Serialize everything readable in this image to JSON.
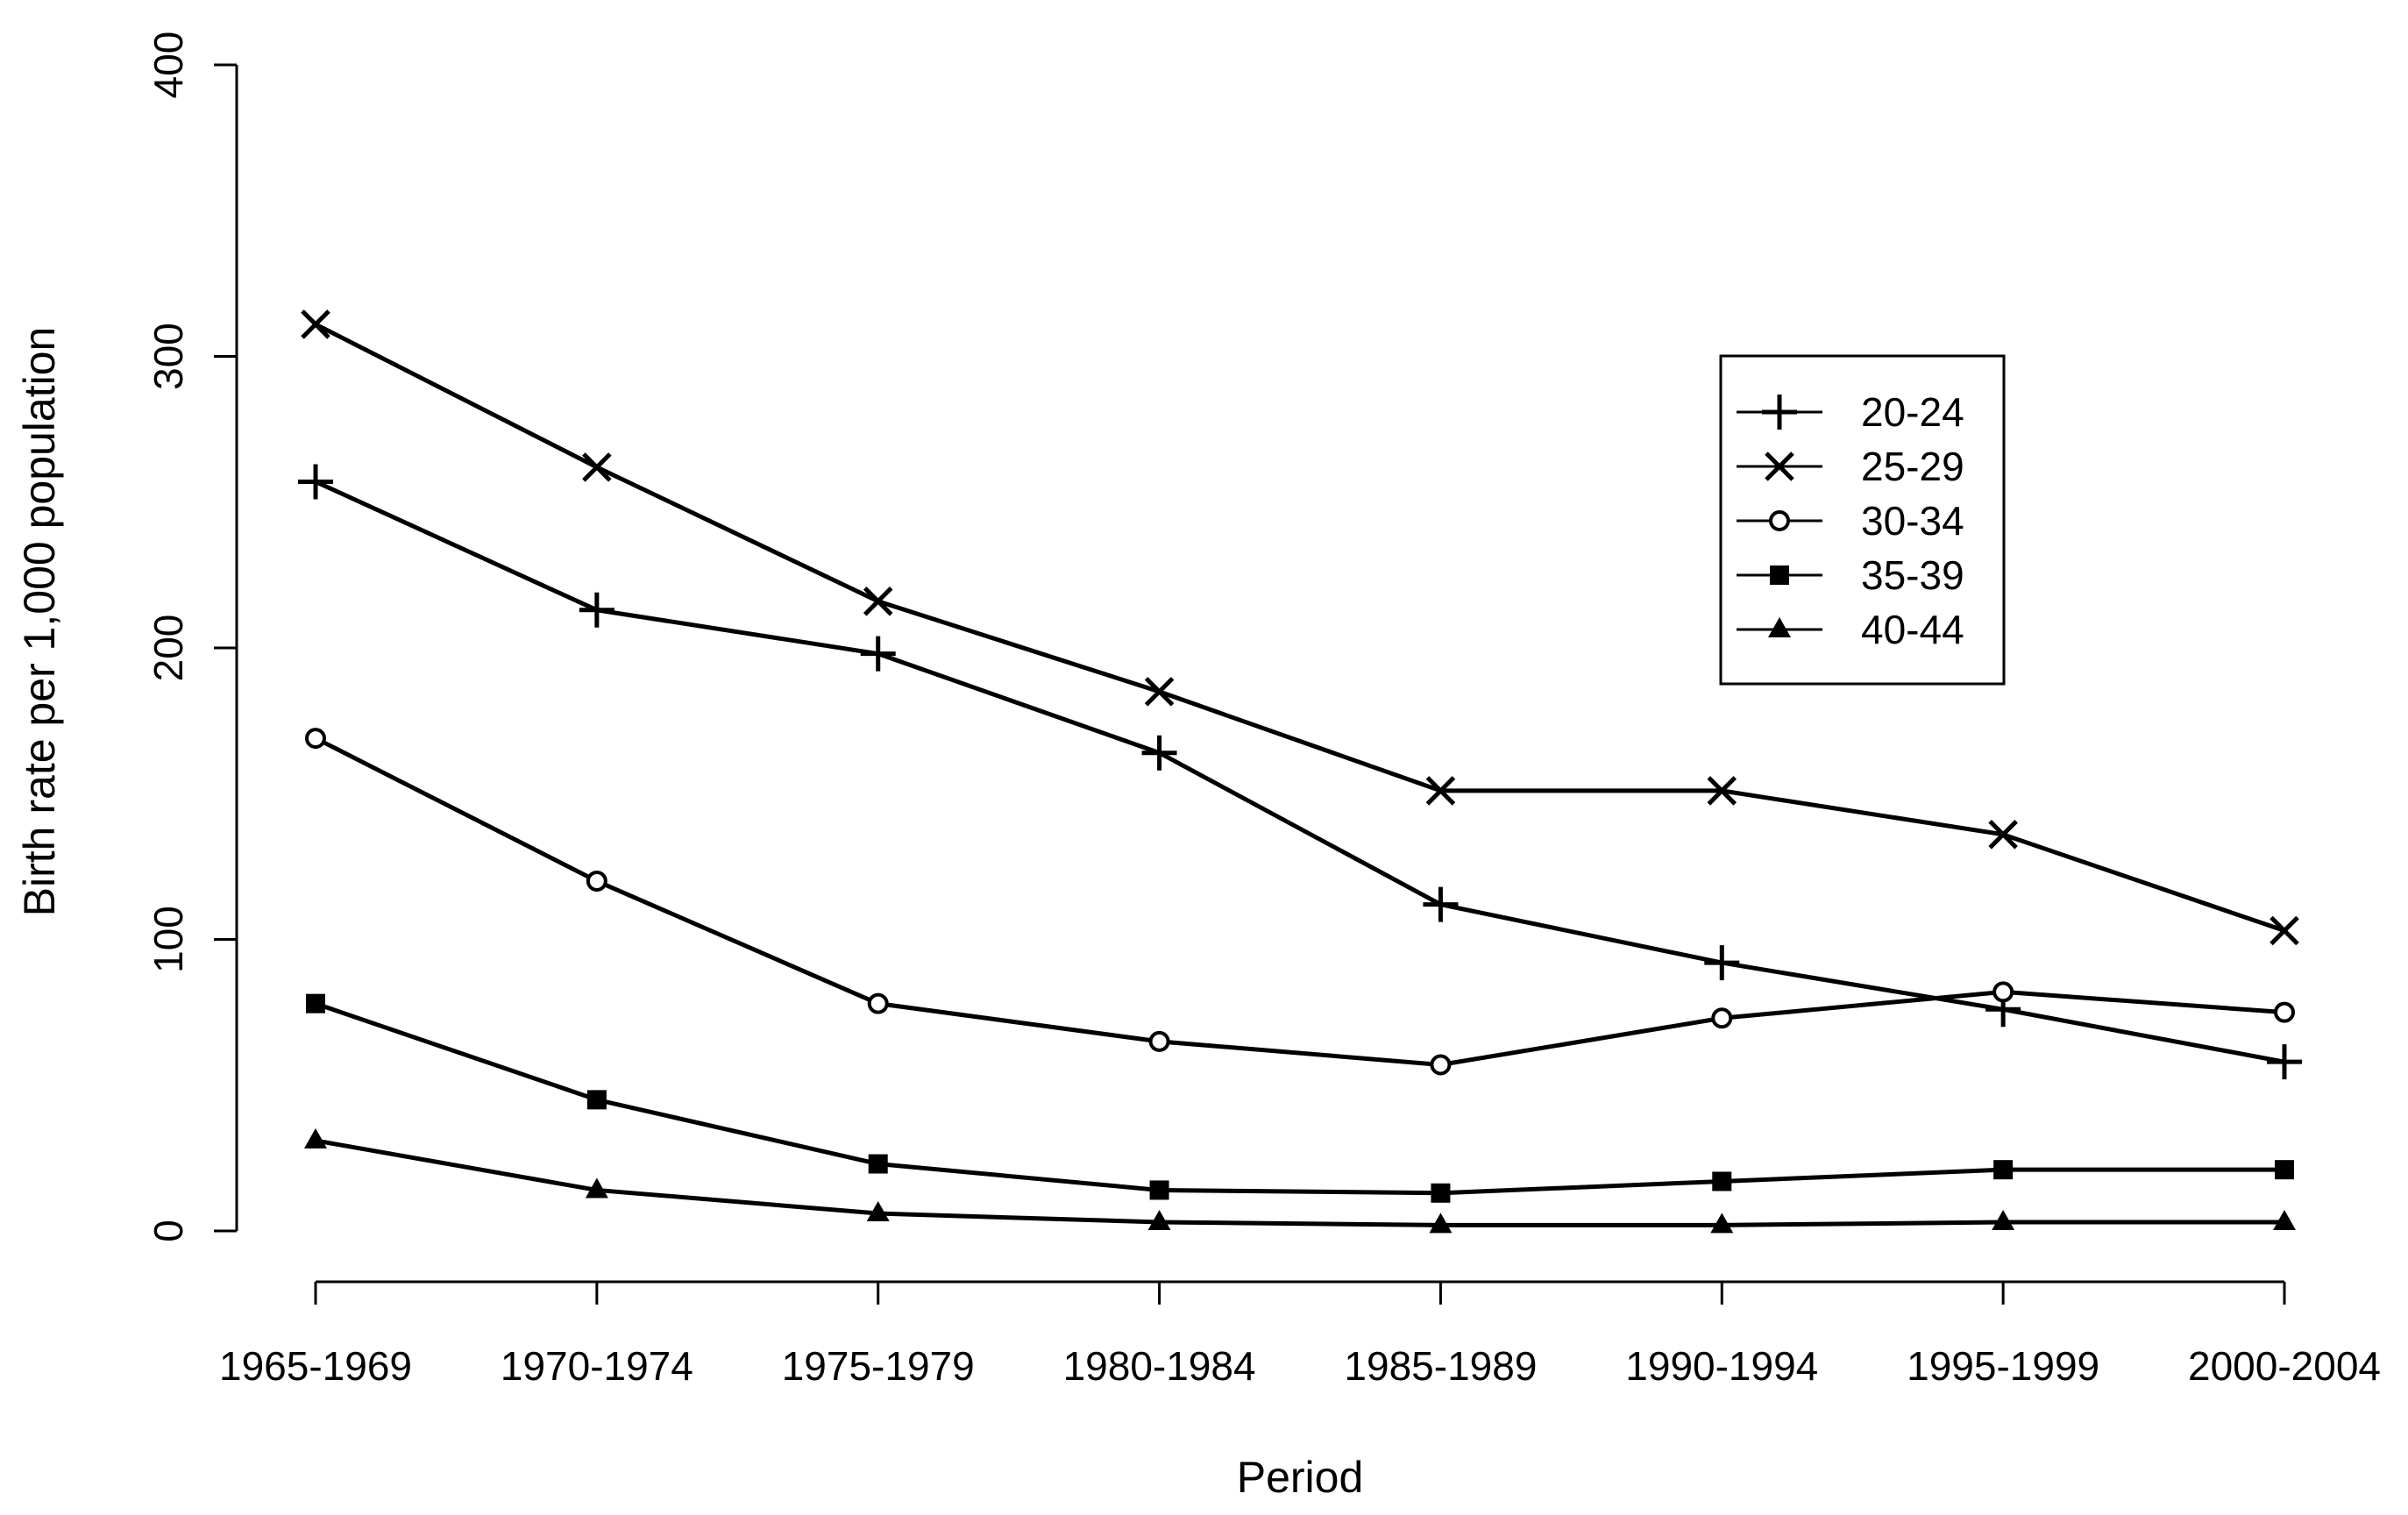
{
  "chart_data": {
    "type": "line",
    "title": "",
    "xlabel": "Period",
    "ylabel": "Birth rate per 1,000 population",
    "categories": [
      "1965-1969",
      "1970-1974",
      "1975-1979",
      "1980-1984",
      "1985-1989",
      "1990-1994",
      "1995-1999",
      "2000-2004"
    ],
    "ylim": [
      0,
      400
    ],
    "yticks": [
      0,
      100,
      200,
      300,
      400
    ],
    "grid": false,
    "legend_position": "right",
    "series": [
      {
        "name": "20-24",
        "marker": "plus",
        "values": [
          257,
          213,
          198,
          164,
          112,
          92,
          76,
          58
        ]
      },
      {
        "name": "25-29",
        "marker": "cross",
        "values": [
          311,
          262,
          216,
          185,
          151,
          151,
          136,
          103
        ]
      },
      {
        "name": "30-34",
        "marker": "circle",
        "values": [
          169,
          120,
          78,
          65,
          57,
          73,
          82,
          75
        ]
      },
      {
        "name": "35-39",
        "marker": "square",
        "values": [
          78,
          45,
          23,
          14,
          13,
          17,
          21,
          21
        ]
      },
      {
        "name": "40-44",
        "marker": "triangle",
        "values": [
          31,
          14,
          6,
          3,
          2,
          2,
          3,
          3
        ]
      }
    ]
  }
}
